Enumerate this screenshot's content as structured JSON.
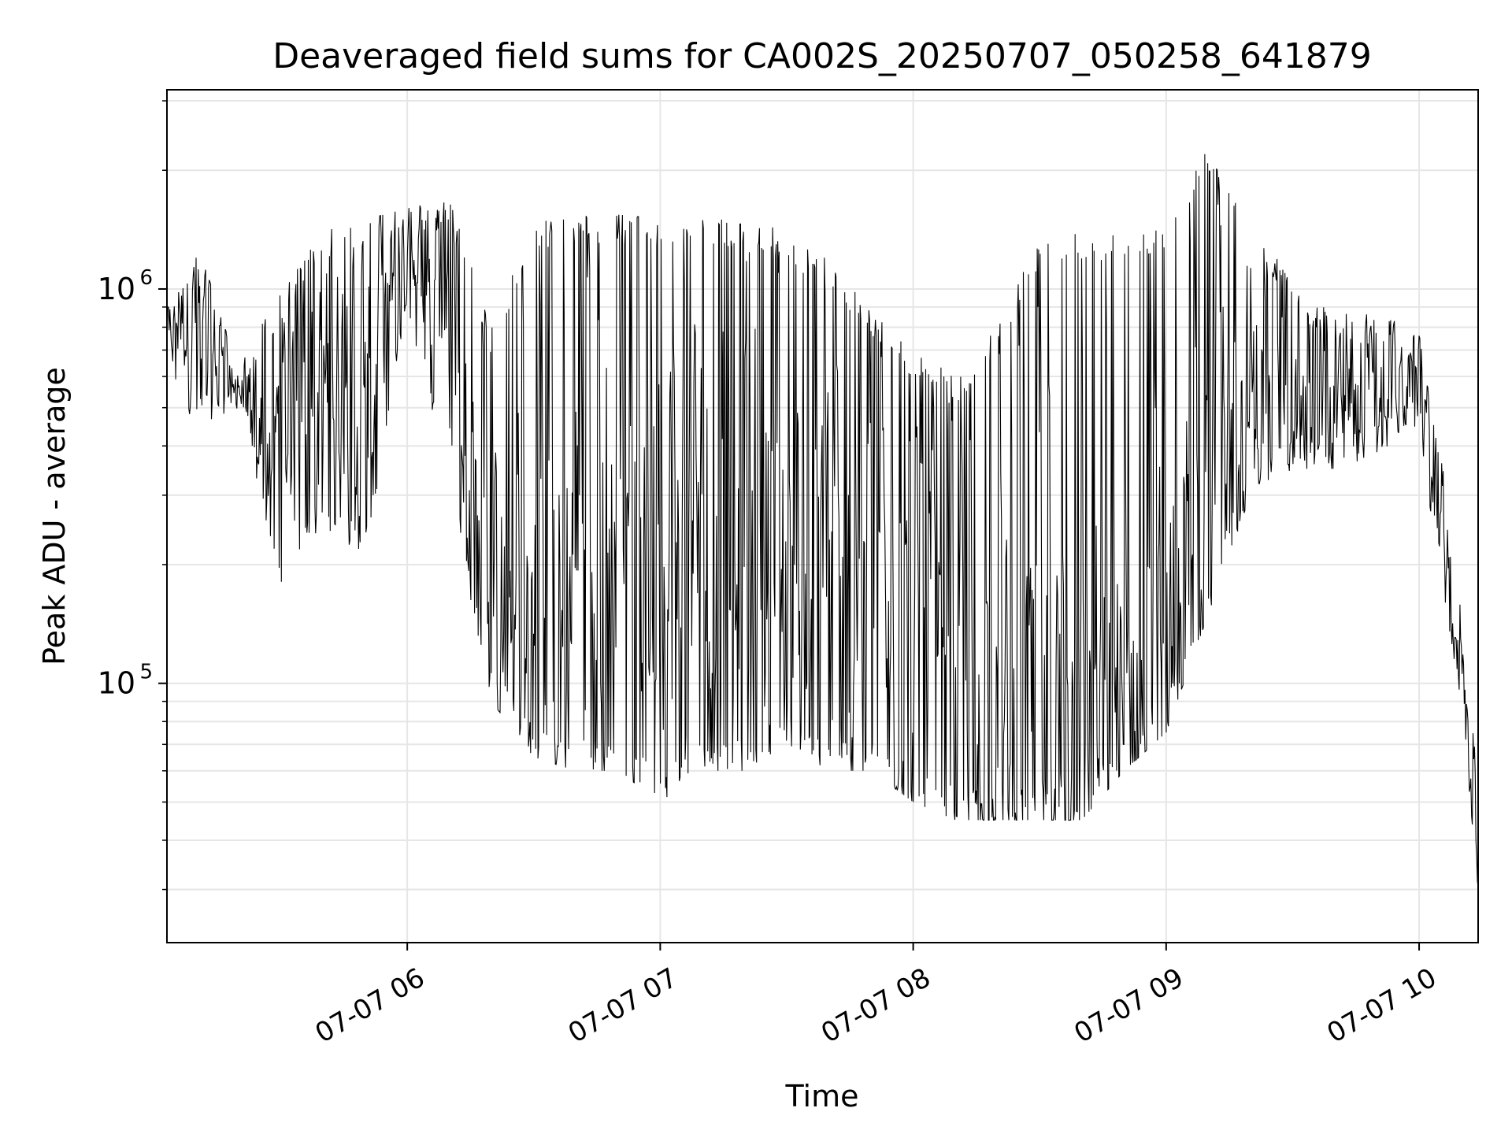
{
  "chart_data": {
    "type": "line",
    "title": "Deaveraged field sums for CA002S_20250707_050258_641879",
    "xlabel": "Time",
    "ylabel": "Peak ADU - average",
    "yscale": "log",
    "ylim": [
      22000,
      3200000
    ],
    "xlim": [
      "2025-07-07 05:03",
      "2025-07-07 10:14"
    ],
    "grid": true,
    "x_ticks": [
      {
        "value": "2025-07-07 06:00",
        "label": "07-07 06"
      },
      {
        "value": "2025-07-07 07:00",
        "label": "07-07 07"
      },
      {
        "value": "2025-07-07 08:00",
        "label": "07-07 08"
      },
      {
        "value": "2025-07-07 09:00",
        "label": "07-07 09"
      },
      {
        "value": "2025-07-07 10:00",
        "label": "07-07 10"
      }
    ],
    "y_ticks": [
      {
        "value": 100000,
        "base": "10",
        "exp": "5"
      },
      {
        "value": 1000000,
        "base": "10",
        "exp": "6"
      }
    ],
    "line_color": "#000000",
    "envelope": {
      "x": [
        "2025-07-07 05:03",
        "2025-07-07 05:10",
        "2025-07-07 05:20",
        "2025-07-07 05:30",
        "2025-07-07 05:40",
        "2025-07-07 05:50",
        "2025-07-07 06:00",
        "2025-07-07 06:10",
        "2025-07-07 06:20",
        "2025-07-07 06:30",
        "2025-07-07 06:40",
        "2025-07-07 06:50",
        "2025-07-07 07:00",
        "2025-07-07 07:10",
        "2025-07-07 07:20",
        "2025-07-07 07:30",
        "2025-07-07 07:40",
        "2025-07-07 07:50",
        "2025-07-07 08:00",
        "2025-07-07 08:10",
        "2025-07-07 08:20",
        "2025-07-07 08:30",
        "2025-07-07 08:40",
        "2025-07-07 08:50",
        "2025-07-07 09:00",
        "2025-07-07 09:10",
        "2025-07-07 09:20",
        "2025-07-07 09:30",
        "2025-07-07 09:40",
        "2025-07-07 09:50",
        "2025-07-07 10:00",
        "2025-07-07 10:05",
        "2025-07-07 10:10",
        "2025-07-07 10:14"
      ],
      "upper": [
        900000,
        1300000,
        650000,
        1000000,
        1400000,
        1500000,
        1600000,
        1700000,
        800000,
        1500000,
        1550000,
        1550000,
        1500000,
        1500000,
        1500000,
        1400000,
        1200000,
        900000,
        700000,
        600000,
        800000,
        1400000,
        1400000,
        1400000,
        1500000,
        2300000,
        1700000,
        1000000,
        900000,
        850000,
        800000,
        400000,
        150000,
        60000
      ],
      "lower": [
        600000,
        450000,
        500000,
        180000,
        250000,
        200000,
        900000,
        300000,
        90000,
        65000,
        60000,
        60000,
        50000,
        60000,
        60000,
        70000,
        60000,
        60000,
        50000,
        45000,
        45000,
        45000,
        45000,
        60000,
        75000,
        150000,
        300000,
        350000,
        350000,
        380000,
        450000,
        180000,
        90000,
        30000
      ],
      "mid": [
        800000,
        900000,
        550000,
        400000,
        600000,
        700000,
        1300000,
        800000,
        120000,
        150000,
        200000,
        300000,
        200000,
        300000,
        250000,
        220000,
        180000,
        120000,
        80000,
        60000,
        55000,
        60000,
        55000,
        70000,
        90000,
        400000,
        600000,
        500000,
        500000,
        550000,
        600000,
        250000,
        110000,
        30000
      ]
    }
  }
}
